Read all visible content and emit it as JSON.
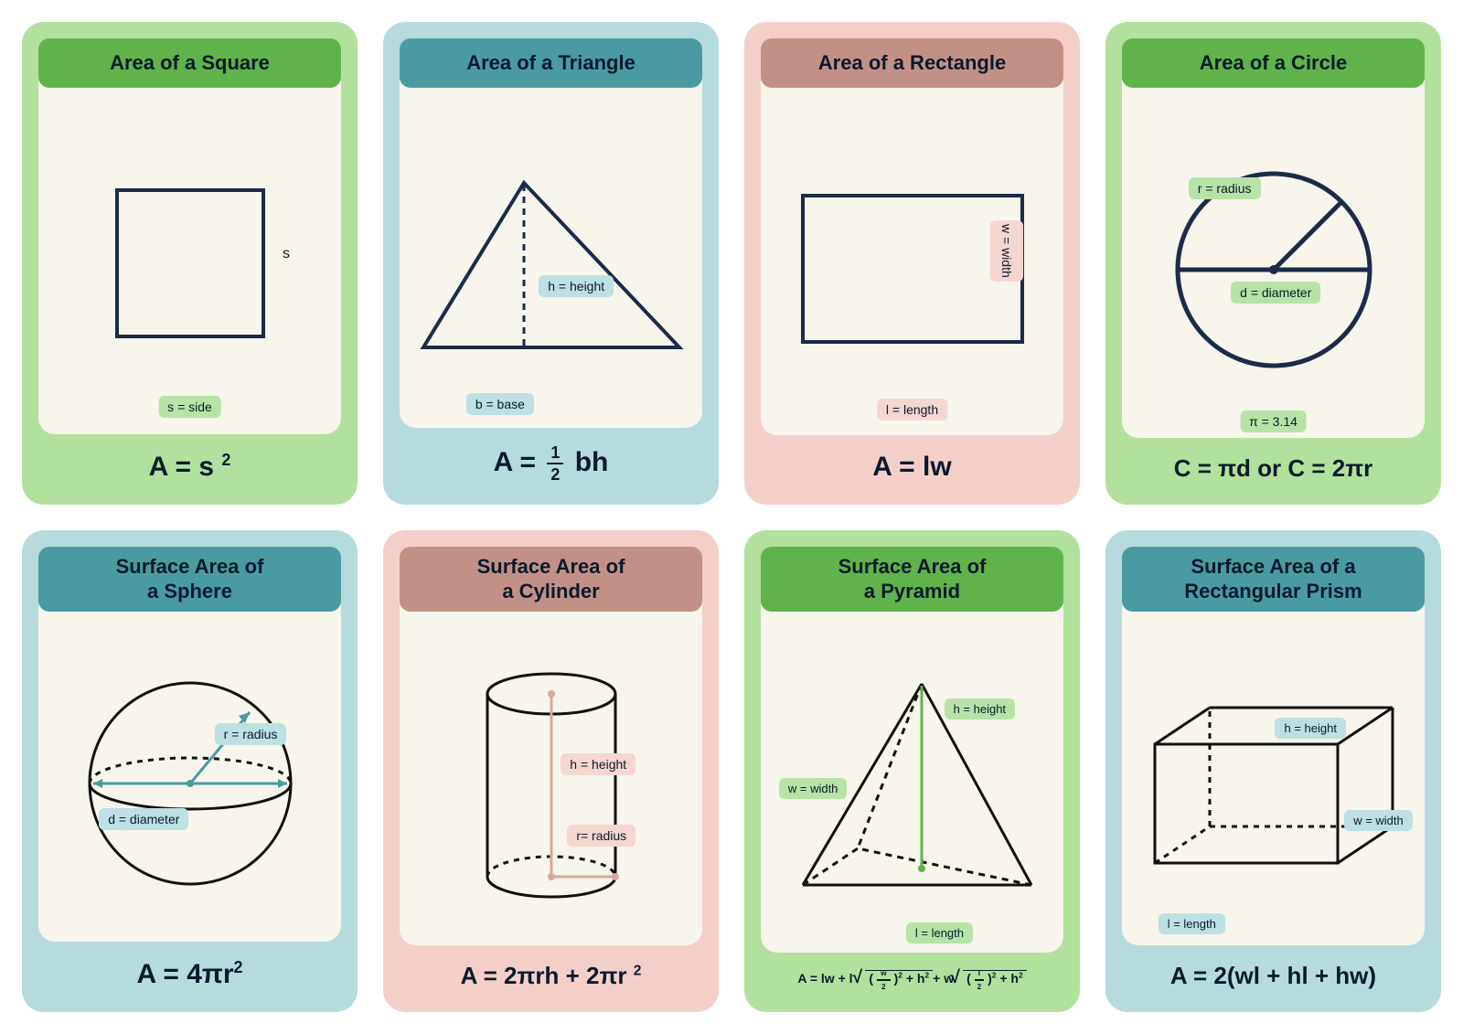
{
  "colors": {
    "green_bg": "#b1e19c",
    "green_header": "#5fb34a",
    "green_tag": "#b7e3a6",
    "teal_bg": "#b6dbdd",
    "teal_header": "#4a9ba1",
    "teal_tag": "#bde0e2",
    "pink_bg": "#f4cfca",
    "pink_header": "#c39087",
    "pink_tag": "#f6d6d1",
    "panel": "#f7f5ec",
    "stroke_navy": "#1c2b4a",
    "stroke_black": "#111111",
    "stroke_teal": "#4a9ba1",
    "stroke_pink": "#d8a89f",
    "stroke_green": "#5fb34a"
  },
  "cards": [
    {
      "id": "square",
      "bg": "#b1e19c",
      "header_bg": "#5fb34a",
      "title": "Area of a Square",
      "formula_html": "A = s <sup>2</sup>",
      "tags": {
        "side": "s = side",
        "s_letter": "s"
      },
      "shape_stroke": "#1c2b4a",
      "stroke_w": 4
    },
    {
      "id": "triangle",
      "bg": "#b6dbdd",
      "header_bg": "#4a9ba1",
      "title": "Area of a Triangle",
      "formula_html": "A = <span class='frac'><span class='num'>1</span><span class='den'>2</span></span> bh",
      "tags": {
        "base": "b = base",
        "height": "h = height"
      },
      "shape_stroke": "#1c2b4a",
      "stroke_w": 4
    },
    {
      "id": "rectangle",
      "bg": "#f4cfca",
      "header_bg": "#c39087",
      "title": "Area of a Rectangle",
      "formula_html": "A = lw",
      "tags": {
        "length": "l = length",
        "width": "w = width"
      },
      "shape_stroke": "#1c2b4a",
      "stroke_w": 4
    },
    {
      "id": "circle",
      "bg": "#b1e19c",
      "header_bg": "#5fb34a",
      "title": "Area of a Circle",
      "formula_html": "C = πd or C = 2πr",
      "tags": {
        "radius": "r = radius",
        "diameter": "d = diameter",
        "pi": "π = 3.14"
      },
      "shape_stroke": "#1c2b4a",
      "stroke_w": 5
    },
    {
      "id": "sphere",
      "bg": "#b6dbdd",
      "header_bg": "#4a9ba1",
      "title_l1": "Surface Area of",
      "title_l2": "a Sphere",
      "formula_html": "A = 4πr<sup>2</sup>",
      "tags": {
        "radius": "r = radius",
        "diameter": "d = diameter"
      },
      "shape_stroke": "#111111",
      "accent": "#4a9ba1",
      "stroke_w": 3
    },
    {
      "id": "cylinder",
      "bg": "#f4cfca",
      "header_bg": "#c39087",
      "title_l1": "Surface Area of",
      "title_l2": "a Cylinder",
      "formula_html": "A = 2πrh + 2πr <sup>2</sup>",
      "tags": {
        "height": "h = height",
        "radius": "r= radius"
      },
      "shape_stroke": "#111111",
      "accent": "#d8a89f",
      "stroke_w": 3
    },
    {
      "id": "pyramid",
      "bg": "#b1e19c",
      "header_bg": "#5fb34a",
      "title_l1": "Surface Area of",
      "title_l2": "a Pyramid",
      "formula_html": "A = lw + l <span class='sqrt'><span class='sqrt-body'>(<span class='frac'><span class='num'>w</span><span class='den'>2</span></span>)<sup>2</sup> + h<sup>2</sup></span></span>+ w<span class='sqrt'><span class='sqrt-body'>(<span class='frac'><span class='num'>l</span><span class='den'>2</span></span>)<sup>2</sup> + h<sup>2</sup></span></span>",
      "tags": {
        "height": "h = height",
        "width": "w = width",
        "length": "l = length"
      },
      "shape_stroke": "#111111",
      "accent": "#5fb34a",
      "stroke_w": 3
    },
    {
      "id": "prism",
      "bg": "#b6dbdd",
      "header_bg": "#4a9ba1",
      "title_l1": "Surface Area of a",
      "title_l2": "Rectangular Prism",
      "formula_html": "A = 2(wl + hl + hw)",
      "tags": {
        "height": "h = height",
        "width": "w = width",
        "length": "l = length"
      },
      "shape_stroke": "#111111",
      "stroke_w": 3
    }
  ]
}
